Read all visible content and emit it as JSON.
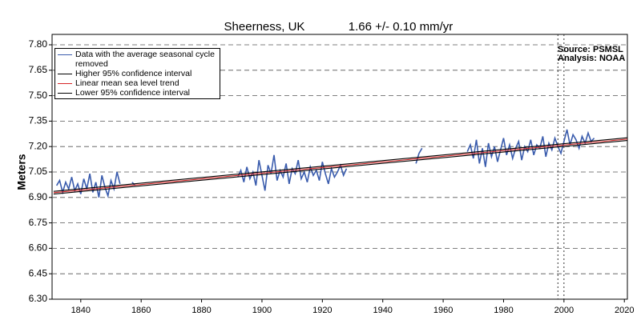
{
  "chart_data": {
    "type": "line",
    "title": "Sheerness, UK",
    "subtitle": "1.66 +/- 0.10  mm/yr",
    "source": "Source: PSMSL",
    "analysis": "Analysis: NOAA",
    "y_label": "Meters",
    "xlim": [
      1830.5,
      2021
    ],
    "ylim": [
      6.3,
      7.8
    ],
    "xticks": [
      1840,
      1860,
      1880,
      1900,
      1920,
      1940,
      1960,
      1980,
      2000,
      2020
    ],
    "yticks": [
      {
        "value": 6.3,
        "label": "6.30"
      },
      6.45,
      {
        "value": 6.6,
        "label": "6.60"
      },
      6.75,
      {
        "value": 6.9,
        "label": "6.90"
      },
      7.05,
      {
        "value": 7.2,
        "label": "7.20"
      },
      7.35,
      {
        "value": 7.5,
        "label": "7.50"
      },
      7.65,
      {
        "value": 7.8,
        "label": "7.80"
      }
    ],
    "grid": true,
    "legend": "top-left",
    "vlines": [
      1998,
      2000
    ],
    "series": [
      {
        "name": "Data with the average seasonal cycle removed",
        "color": "#3a5cad",
        "x": [
          1832,
          1833,
          1834,
          1835,
          1836,
          1837,
          1838,
          1839,
          1840,
          1841,
          1842,
          1843,
          1844,
          1845,
          1846,
          1847,
          1848,
          1849,
          1850,
          1851,
          1852,
          1853,
          1855,
          1857,
          1858,
          1875,
          1892,
          1893,
          1894,
          1895,
          1896,
          1897,
          1898,
          1899,
          1900,
          1901,
          1902,
          1903,
          1904,
          1905,
          1906,
          1907,
          1908,
          1909,
          1910,
          1911,
          1912,
          1913,
          1914,
          1915,
          1916,
          1917,
          1918,
          1919,
          1920,
          1921,
          1922,
          1923,
          1924,
          1925,
          1926,
          1927,
          1928,
          1940,
          1951,
          1952,
          1953,
          1960,
          1968,
          1969,
          1970,
          1971,
          1972,
          1973,
          1974,
          1975,
          1976,
          1977,
          1978,
          1979,
          1980,
          1981,
          1982,
          1983,
          1984,
          1985,
          1986,
          1987,
          1988,
          1989,
          1990,
          1991,
          1992,
          1993,
          1994,
          1995,
          1996,
          1997,
          1998,
          1999,
          2000,
          2001,
          2002,
          2003,
          2004,
          2005,
          2006,
          2007,
          2008,
          2009,
          2010
        ],
        "values": [
          6.97,
          7.0,
          6.93,
          6.99,
          6.95,
          7.02,
          6.94,
          6.98,
          6.92,
          7.01,
          6.95,
          7.04,
          6.93,
          6.99,
          6.9,
          7.03,
          6.96,
          6.91,
          7.0,
          6.95,
          7.05,
          6.98,
          null,
          6.99,
          6.97,
          null,
          7.02,
          7.06,
          6.99,
          7.08,
          7.01,
          7.05,
          6.97,
          7.12,
          7.03,
          6.94,
          7.09,
          7.04,
          7.15,
          7.0,
          7.06,
          7.02,
          7.1,
          6.98,
          7.07,
          7.04,
          7.12,
          7.01,
          7.05,
          6.99,
          7.08,
          7.03,
          7.06,
          7.0,
          7.11,
          7.04,
          6.98,
          7.07,
          7.02,
          7.05,
          7.09,
          7.03,
          7.07,
          null,
          7.1,
          7.16,
          7.19,
          null,
          7.17,
          7.21,
          7.13,
          7.24,
          7.1,
          7.19,
          7.08,
          7.22,
          7.14,
          7.2,
          7.11,
          7.18,
          7.25,
          7.15,
          7.21,
          7.13,
          7.19,
          7.23,
          7.12,
          7.2,
          7.17,
          7.24,
          7.15,
          7.21,
          7.19,
          7.26,
          7.14,
          7.22,
          7.18,
          7.25,
          7.2,
          7.16,
          7.23,
          7.3,
          7.21,
          7.27,
          7.24,
          7.19,
          7.26,
          7.22,
          7.28,
          7.23,
          7.25
        ]
      },
      {
        "name": "Higher 95% confidence interval",
        "color": "#000000",
        "x": [
          1831,
          2021
        ],
        "values": [
          6.936,
          7.252
        ]
      },
      {
        "name": "Linear mean sea level trend",
        "color": "#d62728",
        "x": [
          1831,
          2021
        ],
        "values": [
          6.928,
          7.244
        ]
      },
      {
        "name": "Lower 95% confidence interval",
        "color": "#000000",
        "x": [
          1831,
          2021
        ],
        "values": [
          6.92,
          7.236
        ]
      }
    ]
  }
}
